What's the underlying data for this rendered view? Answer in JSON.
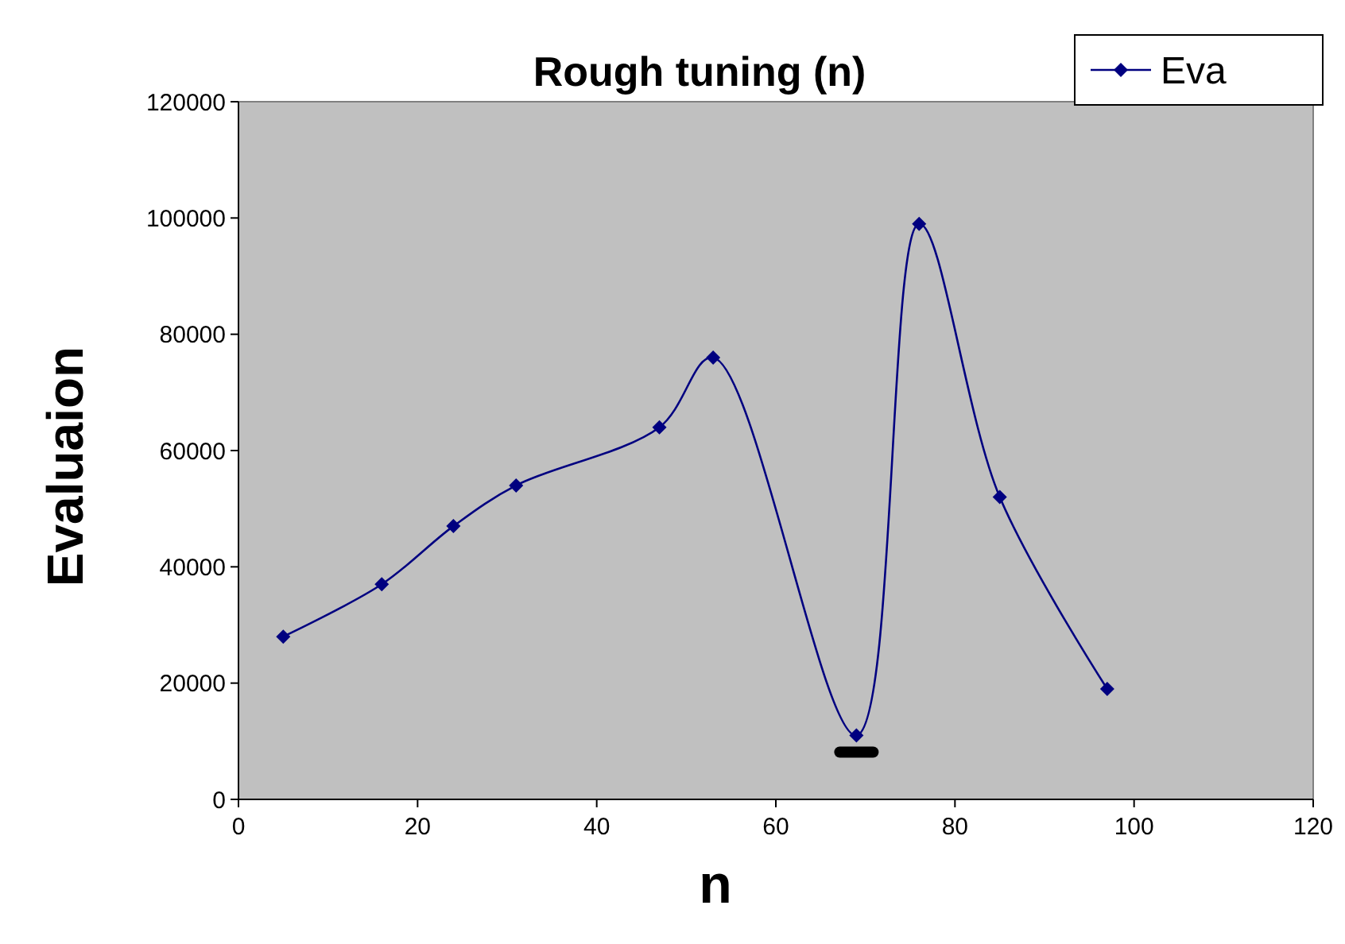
{
  "chart_data": {
    "type": "line",
    "title": "Rough tuning (n)",
    "xlabel": "n",
    "ylabel": "Evaluaion",
    "x": [
      5,
      16,
      24,
      31,
      47,
      53,
      69,
      76,
      85,
      97
    ],
    "series": [
      {
        "name": "Eva",
        "color": "#000080",
        "values": [
          28000,
          37000,
          47000,
          54000,
          64000,
          76000,
          11000,
          99000,
          52000,
          19000
        ]
      }
    ],
    "xlim": [
      0,
      120
    ],
    "xticks": [
      0,
      20,
      40,
      60,
      80,
      100,
      120
    ],
    "ylim": [
      0,
      120000
    ],
    "yticks": [
      0,
      20000,
      40000,
      60000,
      80000,
      100000,
      120000
    ],
    "grid": false,
    "legend": "top right",
    "marker": "diamond",
    "line_style": "solid"
  }
}
